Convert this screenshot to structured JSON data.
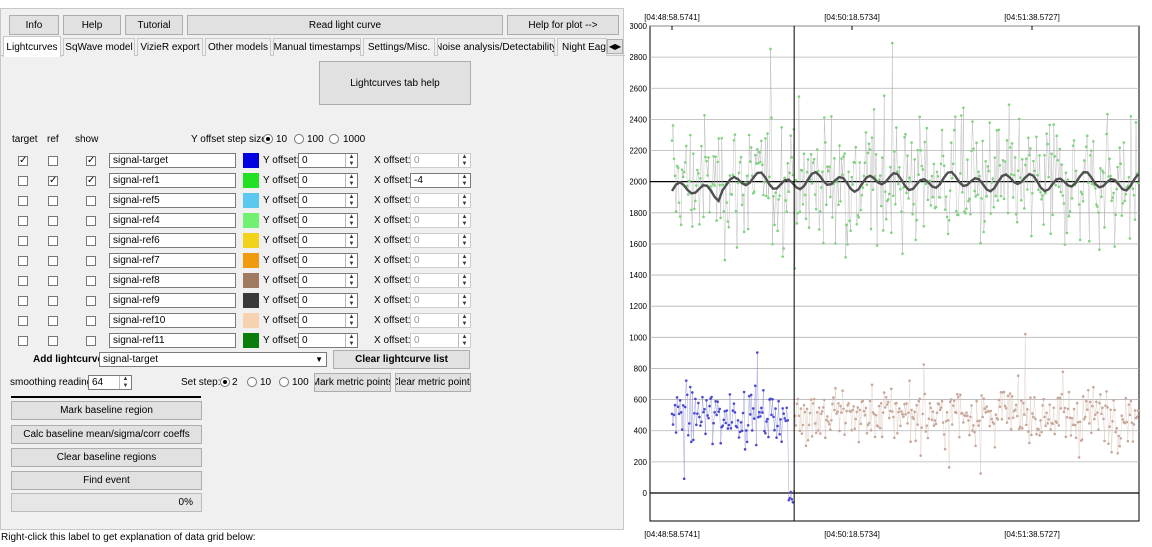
{
  "top_buttons": {
    "info": "Info",
    "help": "Help",
    "tutorial": "Tutorial",
    "read": "Read light curve",
    "plot_help": "Help for plot -->"
  },
  "tabs": [
    "Lightcurves",
    "SqWave model",
    "VizieR export",
    "Other models",
    "Manual timestamps",
    "Settings/Misc.",
    "Noise analysis/Detectability",
    "Night Eagle"
  ],
  "tab_arrow_icon": "left-right-scroll-arrows",
  "lightcurves_help": "Lightcurves tab help",
  "col_headers": {
    "target": "target",
    "ref": "ref",
    "show": "show"
  },
  "y_offset_step_label": "Y offset step size:",
  "y_offset_steps": [
    "10",
    "100",
    "1000"
  ],
  "y_offset_selected": "10",
  "y_offset_label": "Y offset:",
  "x_offset_label": "X offset:",
  "rows": [
    {
      "name": "signal-target",
      "target": true,
      "ref": false,
      "show": true,
      "color": "#0000e0",
      "y": "0",
      "x": "0",
      "x_enabled": false
    },
    {
      "name": "signal-ref1",
      "target": false,
      "ref": true,
      "show": true,
      "color": "#22e022",
      "y": "0",
      "x": "-4",
      "x_enabled": true
    },
    {
      "name": "signal-ref5",
      "target": false,
      "ref": false,
      "show": false,
      "color": "#5bc8f0",
      "y": "0",
      "x": "0",
      "x_enabled": false
    },
    {
      "name": "signal-ref4",
      "target": false,
      "ref": false,
      "show": false,
      "color": "#72f072",
      "y": "0",
      "x": "0",
      "x_enabled": false
    },
    {
      "name": "signal-ref6",
      "target": false,
      "ref": false,
      "show": false,
      "color": "#f2d21a",
      "y": "0",
      "x": "0",
      "x_enabled": false
    },
    {
      "name": "signal-ref7",
      "target": false,
      "ref": false,
      "show": false,
      "color": "#f09a10",
      "y": "0",
      "x": "0",
      "x_enabled": false
    },
    {
      "name": "signal-ref8",
      "target": false,
      "ref": false,
      "show": false,
      "color": "#a07a5e",
      "y": "0",
      "x": "0",
      "x_enabled": false
    },
    {
      "name": "signal-ref9",
      "target": false,
      "ref": false,
      "show": false,
      "color": "#3a3a3a",
      "y": "0",
      "x": "0",
      "x_enabled": false
    },
    {
      "name": "signal-ref10",
      "target": false,
      "ref": false,
      "show": false,
      "color": "#f7d2b0",
      "y": "0",
      "x": "0",
      "x_enabled": false
    },
    {
      "name": "signal-ref11",
      "target": false,
      "ref": false,
      "show": false,
      "color": "#0a7d0a",
      "y": "0",
      "x": "0",
      "x_enabled": false
    }
  ],
  "add_lightcurve_label": "Add lightcurve",
  "add_lightcurve_value": "signal-target",
  "clear_list": "Clear lightcurve list",
  "smoothing_label": "smoothing readings",
  "smoothing_value": "64",
  "set_step_label": "Set step:",
  "set_step_options": [
    "2",
    "10",
    "100"
  ],
  "set_step_selected": "2",
  "mark_metric": "Mark metric points",
  "clear_metric": "Clear metric points",
  "mark_baseline": "Mark baseline region",
  "calc_baseline": "Calc baseline mean/sigma/corr coeffs",
  "clear_baseline": "Clear baseline regions",
  "find_event": "Find event",
  "progress_text": "0%",
  "progress_value": 0,
  "footer_label": "Right-click this label to get explanation of data grid below:",
  "plot": {
    "time_labels": [
      "[04:48:58.5741]",
      "[04:50:18.5734]",
      "[04:51:38.5727]"
    ],
    "y_ticks": [
      0,
      200,
      400,
      600,
      800,
      1000,
      1200,
      1400,
      1600,
      1800,
      2000,
      2200,
      2400,
      2600,
      2800,
      3000
    ],
    "y_range": [
      -180,
      3000
    ],
    "colors": {
      "ref_points": "#7ed37e",
      "ref_lines": "#b0b0b0",
      "smooth": "#505050",
      "target_early": "#4a4ad0",
      "target_late": "#c8a89a",
      "grid": "#b4b4b4"
    },
    "ref_level": 2000,
    "target_level": 500,
    "event_marker_fraction": 0.26
  }
}
